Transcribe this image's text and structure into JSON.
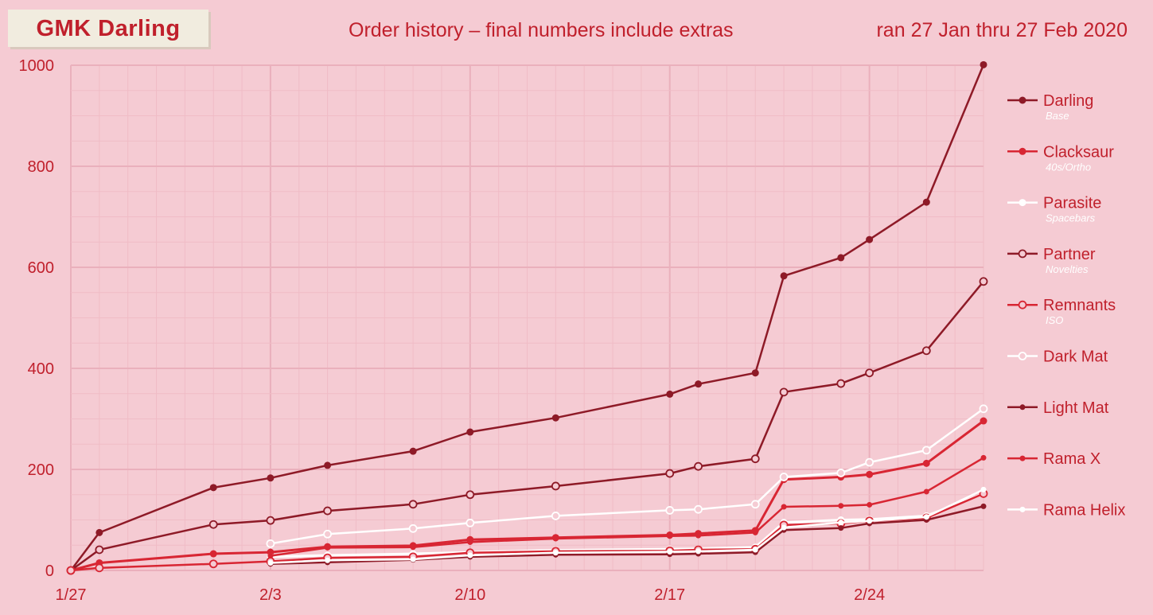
{
  "header": {
    "badge": "GMK Darling",
    "title": "Order history – final numbers include extras",
    "date_range": "ran 27 Jan thru 27 Feb 2020"
  },
  "colors": {
    "background": "#f5cbd3",
    "dark_red": "#8e1a27",
    "red": "#d82633",
    "white": "#ffffff",
    "grid_major": "#eab0bc",
    "grid_minor": "#f0bcc6"
  },
  "chart_data": {
    "type": "line",
    "title": "Order history – final numbers include extras",
    "xlabel": "",
    "ylabel": "",
    "x_tick_labels": [
      "1/27",
      "2/3",
      "2/10",
      "2/17",
      "2/24"
    ],
    "y_tick_labels": [
      "0",
      "200",
      "400",
      "600",
      "800",
      "1000"
    ],
    "x_range_days": [
      0,
      32
    ],
    "ylim": [
      0,
      1000
    ],
    "grid": true,
    "legend_placement": "right",
    "series": [
      {
        "name": "Darling",
        "subtitle": "Base",
        "color": "#8e1a27",
        "marker": "filled",
        "width": 2.5,
        "points": [
          [
            0,
            0
          ],
          [
            1,
            75
          ],
          [
            5,
            164
          ],
          [
            7,
            183
          ],
          [
            9,
            208
          ],
          [
            12,
            236
          ],
          [
            14,
            274
          ],
          [
            17,
            302
          ],
          [
            21,
            349
          ],
          [
            22,
            369
          ],
          [
            24,
            391
          ],
          [
            25,
            583
          ],
          [
            27,
            619
          ],
          [
            28,
            655
          ],
          [
            30,
            729
          ],
          [
            32,
            1001
          ]
        ]
      },
      {
        "name": "Clacksaur",
        "subtitle": "40s/Ortho",
        "color": "#d82633",
        "marker": "filled",
        "width": 3,
        "points": [
          [
            0,
            0
          ],
          [
            1,
            15
          ],
          [
            5,
            33
          ],
          [
            7,
            36
          ],
          [
            9,
            47
          ],
          [
            12,
            49
          ],
          [
            14,
            61
          ],
          [
            17,
            65
          ],
          [
            21,
            70
          ],
          [
            22,
            73
          ],
          [
            24,
            79
          ],
          [
            25,
            180
          ],
          [
            27,
            185
          ],
          [
            28,
            190
          ],
          [
            30,
            212
          ],
          [
            32,
            296
          ]
        ]
      },
      {
        "name": "Parasite",
        "subtitle": "Spacebars",
        "color": "#ffffff",
        "marker": "filled",
        "width": 3,
        "points": [
          [
            7,
            27
          ],
          [
            9,
            30
          ],
          [
            12,
            33
          ],
          [
            14,
            36
          ],
          [
            17,
            40
          ],
          [
            21,
            42
          ],
          [
            22,
            43
          ],
          [
            24,
            46
          ],
          [
            25,
            95
          ],
          [
            27,
            100
          ],
          [
            28,
            101
          ],
          [
            30,
            108
          ],
          [
            32,
            152
          ]
        ]
      },
      {
        "name": "Partner",
        "subtitle": "Novelties",
        "color": "#8e1a27",
        "marker": "hollow",
        "width": 2.5,
        "points": [
          [
            0,
            0
          ],
          [
            1,
            41
          ],
          [
            5,
            91
          ],
          [
            7,
            99
          ],
          [
            9,
            118
          ],
          [
            12,
            131
          ],
          [
            14,
            150
          ],
          [
            17,
            167
          ],
          [
            21,
            192
          ],
          [
            22,
            206
          ],
          [
            24,
            221
          ],
          [
            25,
            353
          ],
          [
            27,
            370
          ],
          [
            28,
            391
          ],
          [
            30,
            435
          ],
          [
            32,
            572
          ]
        ]
      },
      {
        "name": "Remnants",
        "subtitle": "ISO",
        "color": "#d82633",
        "marker": "hollow",
        "width": 2.5,
        "points": [
          [
            0,
            0
          ],
          [
            1,
            5
          ],
          [
            5,
            13
          ],
          [
            7,
            18
          ],
          [
            9,
            25
          ],
          [
            12,
            27
          ],
          [
            14,
            35
          ],
          [
            17,
            38
          ],
          [
            21,
            39
          ],
          [
            22,
            41
          ],
          [
            24,
            42
          ],
          [
            25,
            90
          ],
          [
            27,
            93
          ],
          [
            28,
            98
          ],
          [
            30,
            104
          ],
          [
            32,
            152
          ]
        ]
      },
      {
        "name": "Dark Mat",
        "subtitle": "",
        "color": "#ffffff",
        "marker": "hollow",
        "width": 2.5,
        "points": [
          [
            7,
            53
          ],
          [
            9,
            72
          ],
          [
            12,
            83
          ],
          [
            14,
            94
          ],
          [
            17,
            108
          ],
          [
            21,
            119
          ],
          [
            22,
            121
          ],
          [
            24,
            131
          ],
          [
            25,
            185
          ],
          [
            27,
            193
          ],
          [
            28,
            214
          ],
          [
            30,
            238
          ],
          [
            32,
            320
          ]
        ]
      },
      {
        "name": "Light Mat",
        "subtitle": "",
        "color": "#8e1a27",
        "marker": "small",
        "width": 2.5,
        "points": [
          [
            7,
            13
          ],
          [
            9,
            16
          ],
          [
            12,
            21
          ],
          [
            14,
            27
          ],
          [
            17,
            31
          ],
          [
            21,
            32
          ],
          [
            22,
            33
          ],
          [
            24,
            36
          ],
          [
            25,
            80
          ],
          [
            27,
            84
          ],
          [
            28,
            93
          ],
          [
            30,
            100
          ],
          [
            32,
            127
          ]
        ]
      },
      {
        "name": "Rama X",
        "subtitle": "",
        "color": "#d82633",
        "marker": "small",
        "width": 2.5,
        "points": [
          [
            7,
            29
          ],
          [
            9,
            45
          ],
          [
            12,
            46
          ],
          [
            14,
            56
          ],
          [
            17,
            63
          ],
          [
            21,
            68
          ],
          [
            22,
            69
          ],
          [
            24,
            75
          ],
          [
            25,
            126
          ],
          [
            27,
            128
          ],
          [
            28,
            130
          ],
          [
            30,
            156
          ],
          [
            32,
            223
          ]
        ]
      },
      {
        "name": "Rama Helix",
        "subtitle": "",
        "color": "#ffffff",
        "marker": "small",
        "width": 2.5,
        "points": [
          [
            7,
            15
          ],
          [
            9,
            20
          ],
          [
            12,
            22
          ],
          [
            14,
            30
          ],
          [
            17,
            35
          ],
          [
            21,
            37
          ],
          [
            22,
            38
          ],
          [
            24,
            41
          ],
          [
            25,
            85
          ],
          [
            27,
            95
          ],
          [
            28,
            98
          ],
          [
            30,
            106
          ],
          [
            32,
            160
          ]
        ]
      }
    ]
  }
}
